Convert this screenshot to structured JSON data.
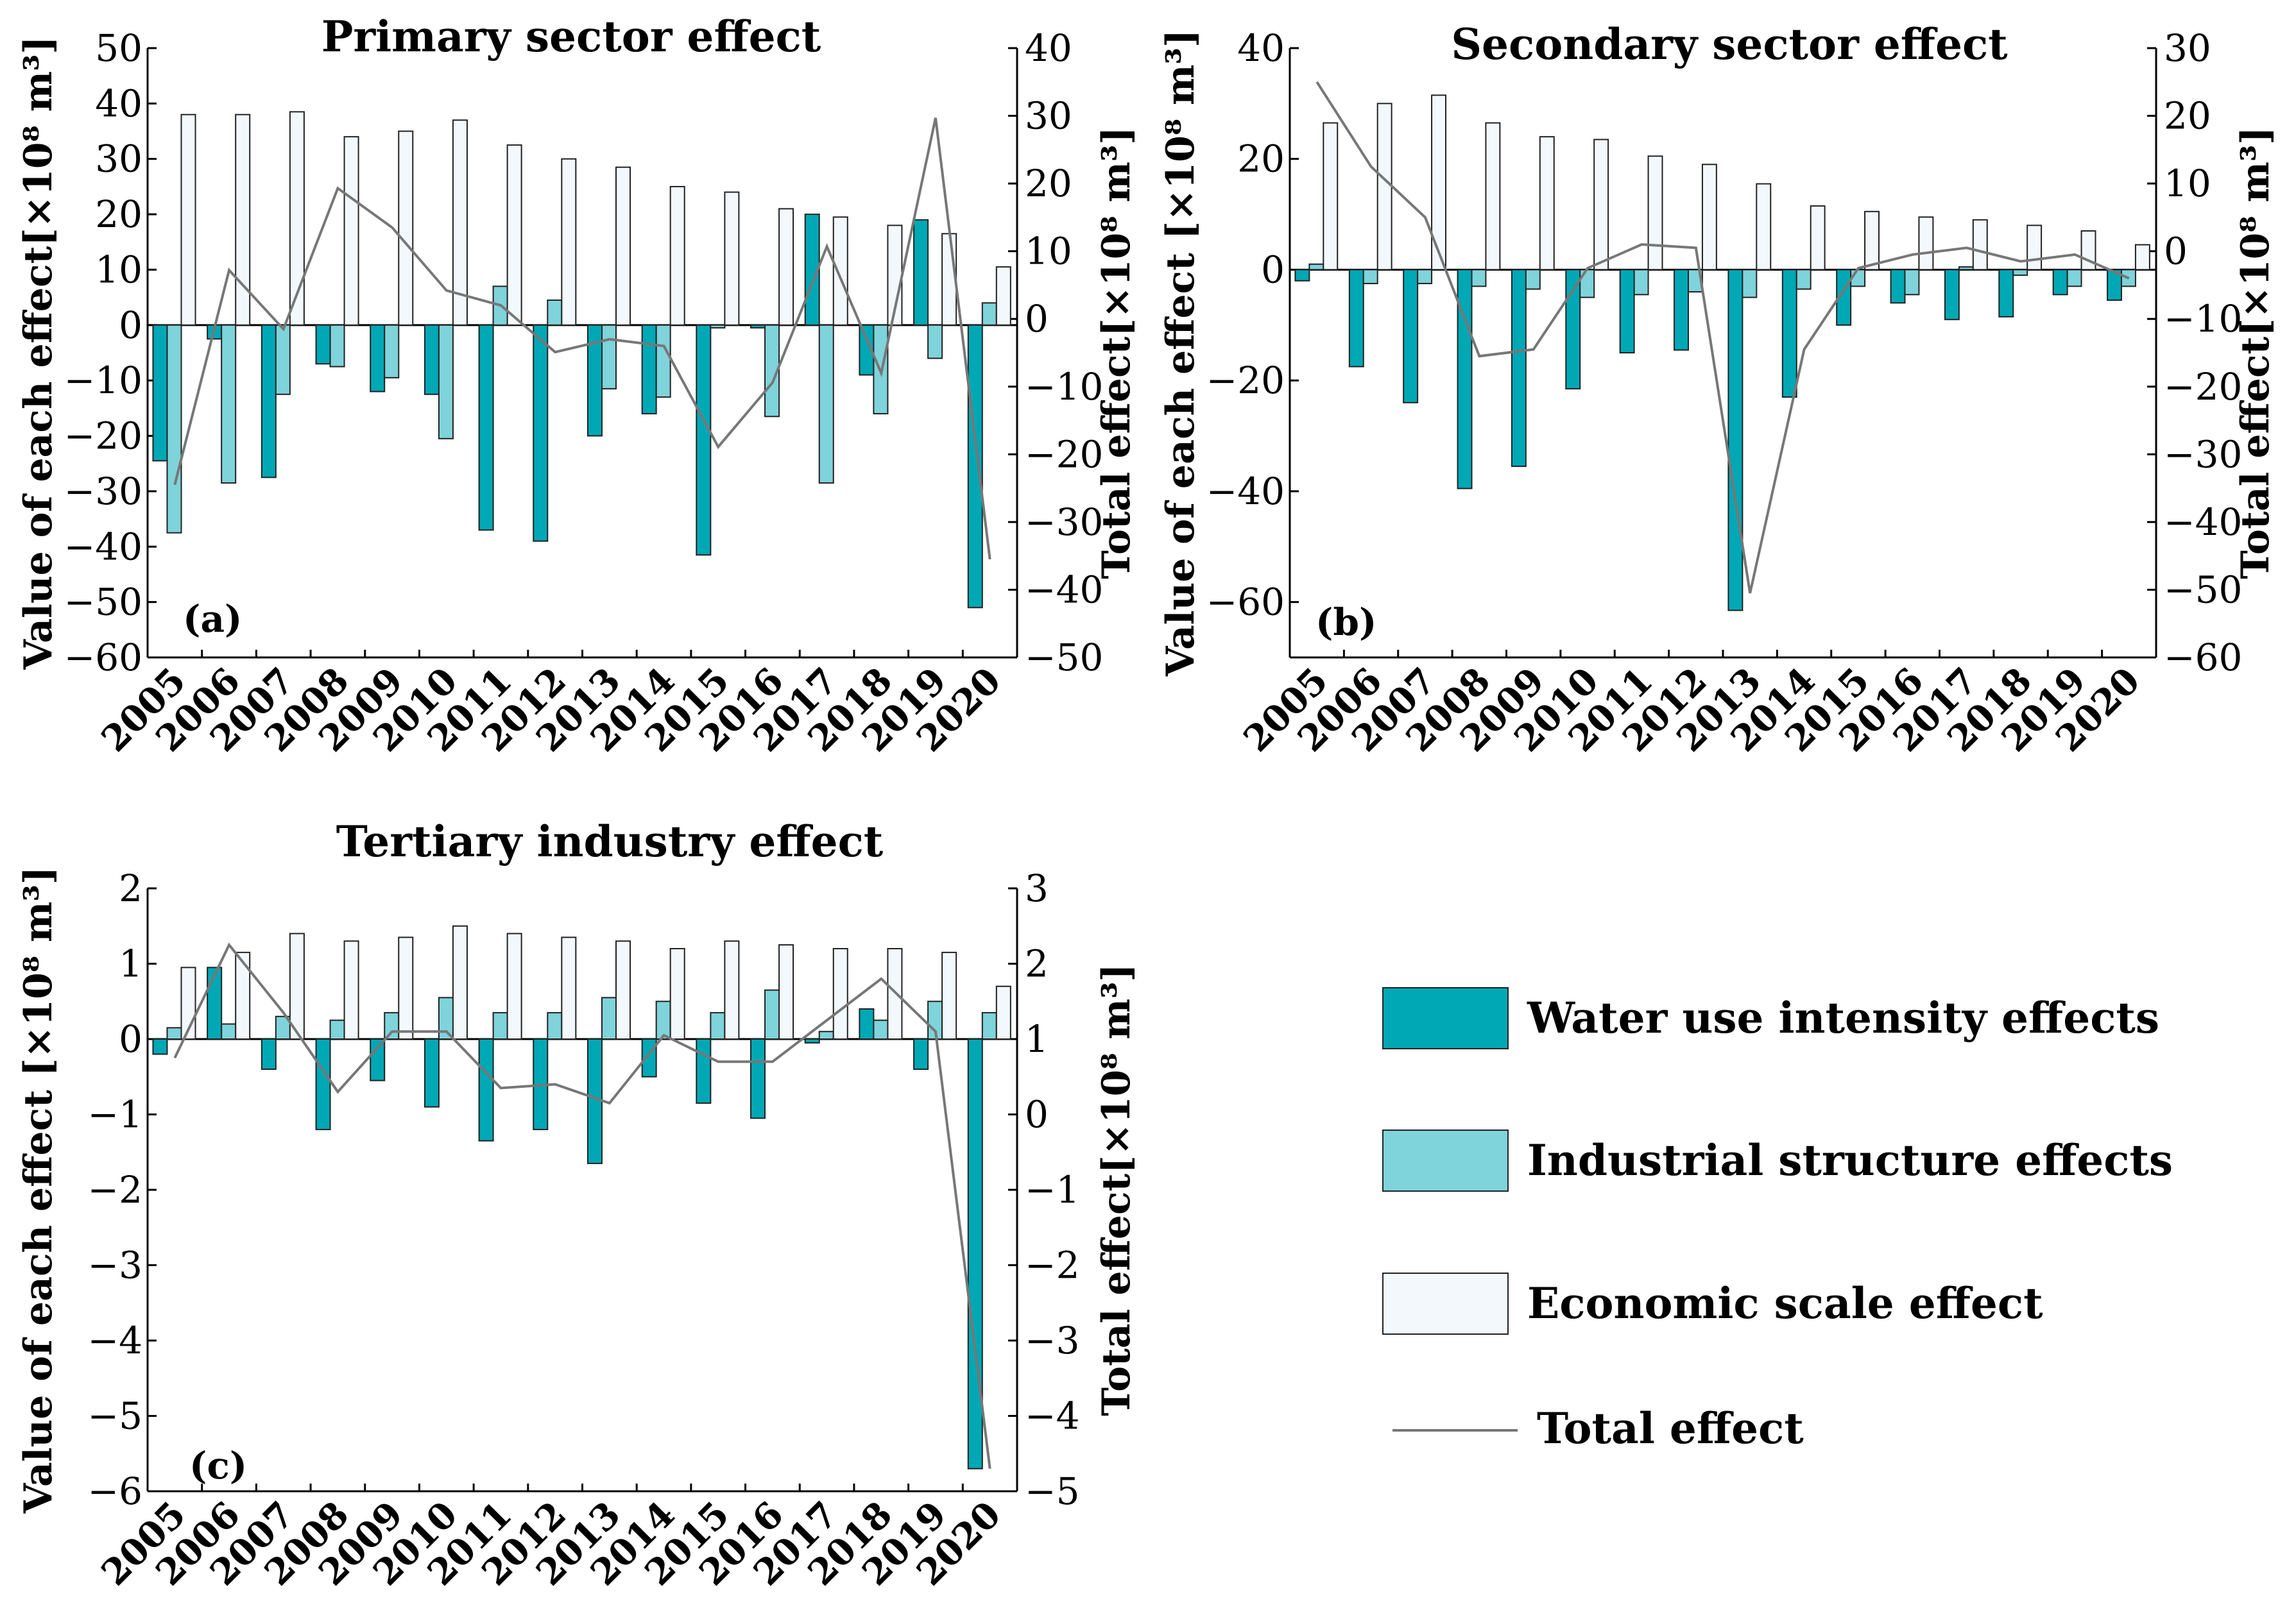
{
  "legend": {
    "water": "Water use intensity effects",
    "structure": "Industrial structure effects",
    "scale": "Economic scale effect",
    "total": "Total effect"
  },
  "colors": {
    "water": "#00A8B5",
    "structure": "#7FD3DA",
    "scale": "#F2F8FB",
    "line": "#777777"
  },
  "chart_data": [
    {
      "id": "a",
      "type": "bar+line",
      "title": "Primary sector effect",
      "label": "(a)",
      "ylabel": "Value of each effect[×10⁸ m³]",
      "y2label": "Total effect[×10⁸ m³]",
      "categories": [
        "2005",
        "2006",
        "2007",
        "2008",
        "2009",
        "2010",
        "2011",
        "2012",
        "2013",
        "2014",
        "2015",
        "2016",
        "2017",
        "2018",
        "2019",
        "2020"
      ],
      "ylim": [
        -60,
        50
      ],
      "yticks": [
        -60,
        -50,
        -40,
        -30,
        -20,
        -10,
        0,
        10,
        20,
        30,
        40,
        50
      ],
      "y2lim": [
        -50,
        40
      ],
      "y2ticks": [
        -50,
        -40,
        -30,
        -20,
        -10,
        0,
        10,
        20,
        30,
        40
      ],
      "series": [
        {
          "name": "Water use intensity effects",
          "values": [
            -24.5,
            -2.5,
            -27.5,
            -7,
            -12,
            -12.5,
            -37,
            -39,
            -20,
            -16,
            -41.5,
            -0.5,
            20,
            -9,
            19,
            -51
          ]
        },
        {
          "name": "Industrial structure effects",
          "values": [
            -37.5,
            -28.5,
            -12.5,
            -7.5,
            -9.5,
            -20.5,
            7,
            4.5,
            -11.5,
            -13,
            -0.5,
            -16.5,
            -28.5,
            -16,
            -6,
            4
          ]
        },
        {
          "name": "Economic scale effect",
          "values": [
            38,
            38,
            38.5,
            34,
            35,
            37,
            32.5,
            30,
            28.5,
            25,
            24,
            21,
            19.5,
            18,
            16.5,
            10.5
          ]
        },
        {
          "name": "Total effect",
          "axis": "right",
          "values": [
            -24.5,
            7.2,
            -1.5,
            19.3,
            13.5,
            4.2,
            2,
            -4.9,
            -3,
            -4,
            -18.9,
            -9.4,
            10.7,
            -8,
            29.7,
            -35.5
          ]
        }
      ]
    },
    {
      "id": "b",
      "type": "bar+line",
      "title": "Secondary sector effect",
      "label": "(b)",
      "ylabel": "Value of each effect [×10⁸ m³]",
      "y2label": "Total effect[×10⁸ m³]",
      "categories": [
        "2005",
        "2006",
        "2007",
        "2008",
        "2009",
        "2010",
        "2011",
        "2012",
        "2013",
        "2014",
        "2015",
        "2016",
        "2017",
        "2018",
        "2019",
        "2020"
      ],
      "ylim": [
        -70,
        40
      ],
      "yticks": [
        -60,
        -40,
        -20,
        0,
        20,
        40
      ],
      "y2lim": [
        -60,
        30
      ],
      "y2ticks": [
        -60,
        -50,
        -40,
        -30,
        -20,
        -10,
        0,
        10,
        20,
        30
      ],
      "series": [
        {
          "name": "Water use intensity effects",
          "values": [
            -2,
            -17.5,
            -24,
            -39.5,
            -35.5,
            -21.5,
            -15,
            -14.5,
            -61.5,
            -23,
            -10,
            -6,
            -9,
            -8.5,
            -4.5,
            -5.5
          ]
        },
        {
          "name": "Industrial structure effects",
          "values": [
            1,
            -2.5,
            -2.5,
            -3,
            -3.5,
            -5,
            -4.5,
            -4,
            -5,
            -3.5,
            -3,
            -4.5,
            0.5,
            -1,
            -3,
            -3
          ]
        },
        {
          "name": "Economic scale effect",
          "values": [
            26.5,
            30,
            31.5,
            26.5,
            24,
            23.5,
            20.5,
            19,
            15.5,
            11.5,
            10.5,
            9.5,
            9,
            8,
            7,
            4.5
          ]
        },
        {
          "name": "Total effect",
          "axis": "right",
          "values": [
            25,
            12.5,
            5,
            -15.5,
            -14.5,
            -2.5,
            1,
            0.5,
            -50.5,
            -14.5,
            -2.5,
            -0.5,
            0.5,
            -1.5,
            -0.5,
            -4
          ]
        }
      ]
    },
    {
      "id": "c",
      "type": "bar+line",
      "title": "Tertiary industry effect",
      "label": "(c)",
      "ylabel": "Value of each effect [×10⁸ m³]",
      "y2label": "Total  effect[×10⁸ m³]",
      "categories": [
        "2005",
        "2006",
        "2007",
        "2008",
        "2009",
        "2010",
        "2011",
        "2012",
        "2013",
        "2014",
        "2015",
        "2016",
        "2017",
        "2018",
        "2019",
        "2020"
      ],
      "ylim": [
        -6,
        2
      ],
      "yticks": [
        -6,
        -5,
        -4,
        -3,
        -2,
        -1,
        0,
        1,
        2
      ],
      "y2lim": [
        -5,
        3
      ],
      "y2ticks": [
        -5,
        -4,
        -3,
        -2,
        -1,
        0,
        1,
        2,
        3
      ],
      "series": [
        {
          "name": "Water use intensity effects",
          "values": [
            -0.2,
            0.95,
            -0.4,
            -1.2,
            -0.55,
            -0.9,
            -1.35,
            -1.2,
            -1.65,
            -0.5,
            -0.85,
            -1.05,
            -0.05,
            0.4,
            -0.4,
            -5.7
          ]
        },
        {
          "name": "Industrial structure effects",
          "values": [
            0.15,
            0.2,
            0.3,
            0.25,
            0.35,
            0.55,
            0.35,
            0.35,
            0.55,
            0.5,
            0.35,
            0.65,
            0.1,
            0.25,
            0.5,
            0.35
          ]
        },
        {
          "name": "Economic scale effect",
          "values": [
            0.95,
            1.15,
            1.4,
            1.3,
            1.35,
            1.5,
            1.4,
            1.35,
            1.3,
            1.2,
            1.3,
            1.25,
            1.2,
            1.2,
            1.15,
            0.7
          ]
        },
        {
          "name": "Total effect",
          "axis": "right",
          "values": [
            0.75,
            2.25,
            1.35,
            0.3,
            1.1,
            1.1,
            0.35,
            0.4,
            0.15,
            1.05,
            0.7,
            0.7,
            1.25,
            1.8,
            1.1,
            -4.7
          ]
        }
      ]
    }
  ]
}
